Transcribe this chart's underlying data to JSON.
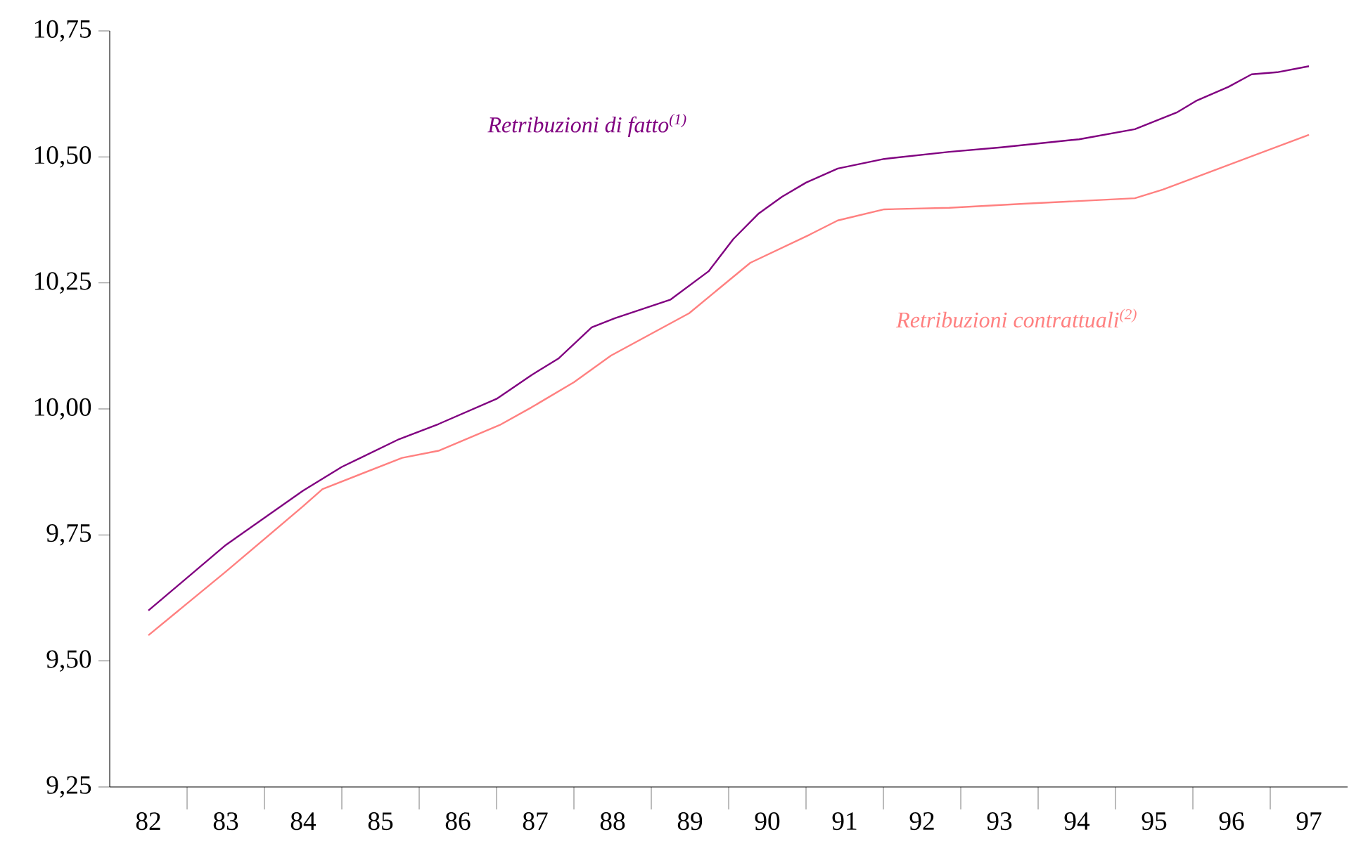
{
  "chart_data": {
    "type": "line",
    "xlim": [
      81.5,
      97.5
    ],
    "xticks": [
      82,
      83,
      84,
      85,
      86,
      87,
      88,
      89,
      90,
      91,
      92,
      93,
      94,
      95,
      96,
      97,
      {
        "value": 82.5,
        "label": null
      },
      {
        "value": 83.5,
        "label": null
      },
      {
        "value": 84.5,
        "label": null
      },
      {
        "value": 85.5,
        "label": null
      },
      {
        "value": 86.5,
        "label": null
      },
      {
        "value": 87.5,
        "label": null
      },
      {
        "value": 88.5,
        "label": null
      },
      {
        "value": 89.5,
        "label": null
      },
      {
        "value": 90.5,
        "label": null
      },
      {
        "value": 91.5,
        "label": null
      },
      {
        "value": 92.5,
        "label": null
      },
      {
        "value": 93.5,
        "label": null
      },
      {
        "value": 94.5,
        "label": null
      },
      {
        "value": 95.5,
        "label": null
      },
      {
        "value": 96.5,
        "label": null
      }
    ],
    "ylim": [
      9.25,
      10.75
    ],
    "yticks": [
      {
        "value": 9.25,
        "label": "9,25"
      },
      {
        "value": 9.5,
        "label": "9,50"
      },
      {
        "value": 9.75,
        "label": "9,75"
      },
      {
        "value": 10.0,
        "label": "10,00"
      },
      {
        "value": 10.25,
        "label": "10,25"
      },
      {
        "value": 10.5,
        "label": "10,50"
      },
      {
        "value": 10.75,
        "label": "10,75"
      }
    ],
    "grid": false,
    "legend": false,
    "marker": "none",
    "line_style": "solid",
    "series": [
      {
        "name": "Retribuzioni di fatto$^{(1)}$",
        "color": "#800080",
        "x": [
          82.0,
          83.0,
          84.0,
          84.5,
          85.24,
          85.75,
          86.5,
          86.95,
          87.3,
          87.73,
          88.03,
          88.75,
          89.24,
          89.56,
          89.89,
          90.19,
          90.5,
          90.91,
          91.51,
          92.35,
          93.02,
          94.03,
          94.75,
          95.29,
          95.54,
          95.96,
          96.26,
          96.59,
          97.0
        ],
        "values": [
          9.6,
          9.73,
          9.838,
          9.885,
          9.94,
          9.97,
          10.02,
          10.067,
          10.1,
          10.162,
          10.18,
          10.217,
          10.273,
          10.337,
          10.388,
          10.421,
          10.449,
          10.477,
          10.496,
          10.51,
          10.519,
          10.535,
          10.555,
          10.588,
          10.611,
          10.639,
          10.664,
          10.668,
          10.68
        ]
      },
      {
        "name": "Retribuzioni contrattuali$^{(2)}$",
        "color": "#ff8080",
        "x": [
          82.0,
          83.0,
          84.0,
          84.25,
          85.28,
          85.75,
          86.54,
          86.95,
          87.5,
          87.98,
          88.99,
          89.78,
          90.55,
          90.91,
          91.51,
          92.35,
          93.31,
          94.75,
          95.11,
          97.0
        ],
        "values": [
          9.551,
          9.677,
          9.807,
          9.841,
          9.903,
          9.917,
          9.968,
          10.003,
          10.053,
          10.106,
          10.19,
          10.29,
          10.346,
          10.374,
          10.396,
          10.399,
          10.407,
          10.418,
          10.435,
          10.544
        ]
      }
    ]
  }
}
